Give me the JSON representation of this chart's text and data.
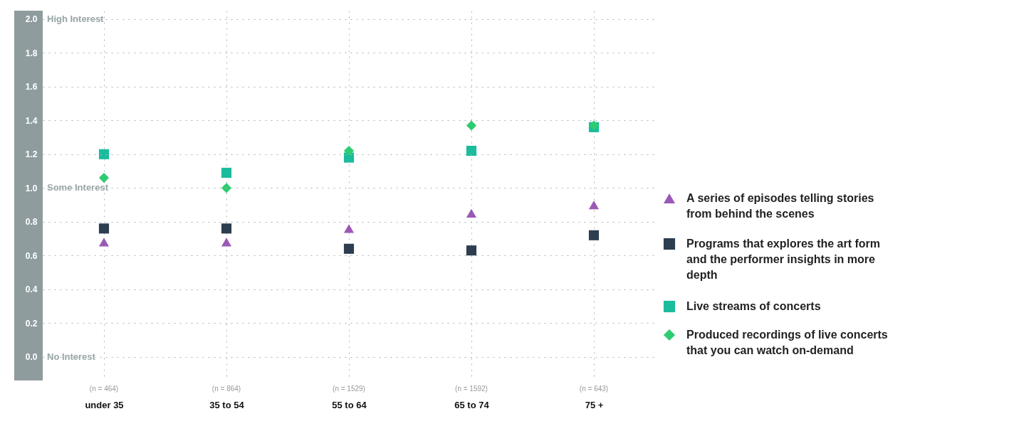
{
  "chart_data": {
    "type": "scatter",
    "categories": [
      "under 35",
      "35 to 54",
      "55 to 64",
      "65 to 74",
      "75 +"
    ],
    "ylim": [
      -0.14,
      2.05
    ],
    "yticks": [
      {
        "value": 0,
        "label": "0.0"
      },
      0.2,
      0.4,
      0.6,
      0.8,
      {
        "value": 1,
        "label": "1.0"
      },
      1.2,
      1.4,
      1.6,
      1.8,
      {
        "value": 2,
        "label": "2.0"
      }
    ],
    "grid": true,
    "legend": "right",
    "series": [
      {
        "name": "A series of episodes telling stories from behind the scenes",
        "color": "#9b59b6",
        "marker": "triangle",
        "values": [
          0.68,
          0.68,
          0.76,
          0.85,
          0.9
        ]
      },
      {
        "name": "Programs that explores the art form and the performer insights in more depth",
        "color": "#2c3e50",
        "marker": "square",
        "values": [
          0.76,
          0.76,
          0.64,
          0.63,
          0.72
        ]
      },
      {
        "name": "Live streams of concerts",
        "color": "#1abc9c",
        "marker": "square",
        "values": [
          1.2,
          1.09,
          1.18,
          1.22,
          1.36
        ]
      },
      {
        "name": "Produced recordings of live concerts that you can watch on-demand",
        "color": "#2ecc71",
        "marker": "diamond",
        "values": [
          1.06,
          1.0,
          1.22,
          1.37,
          1.37
        ]
      }
    ],
    "annotations": [
      "(n = 464)",
      "(n = 864)",
      "(n = 1529)",
      "(n = 1592)",
      "(n = 643)",
      "High Interest",
      "Some Interest",
      "No Interest"
    ]
  }
}
